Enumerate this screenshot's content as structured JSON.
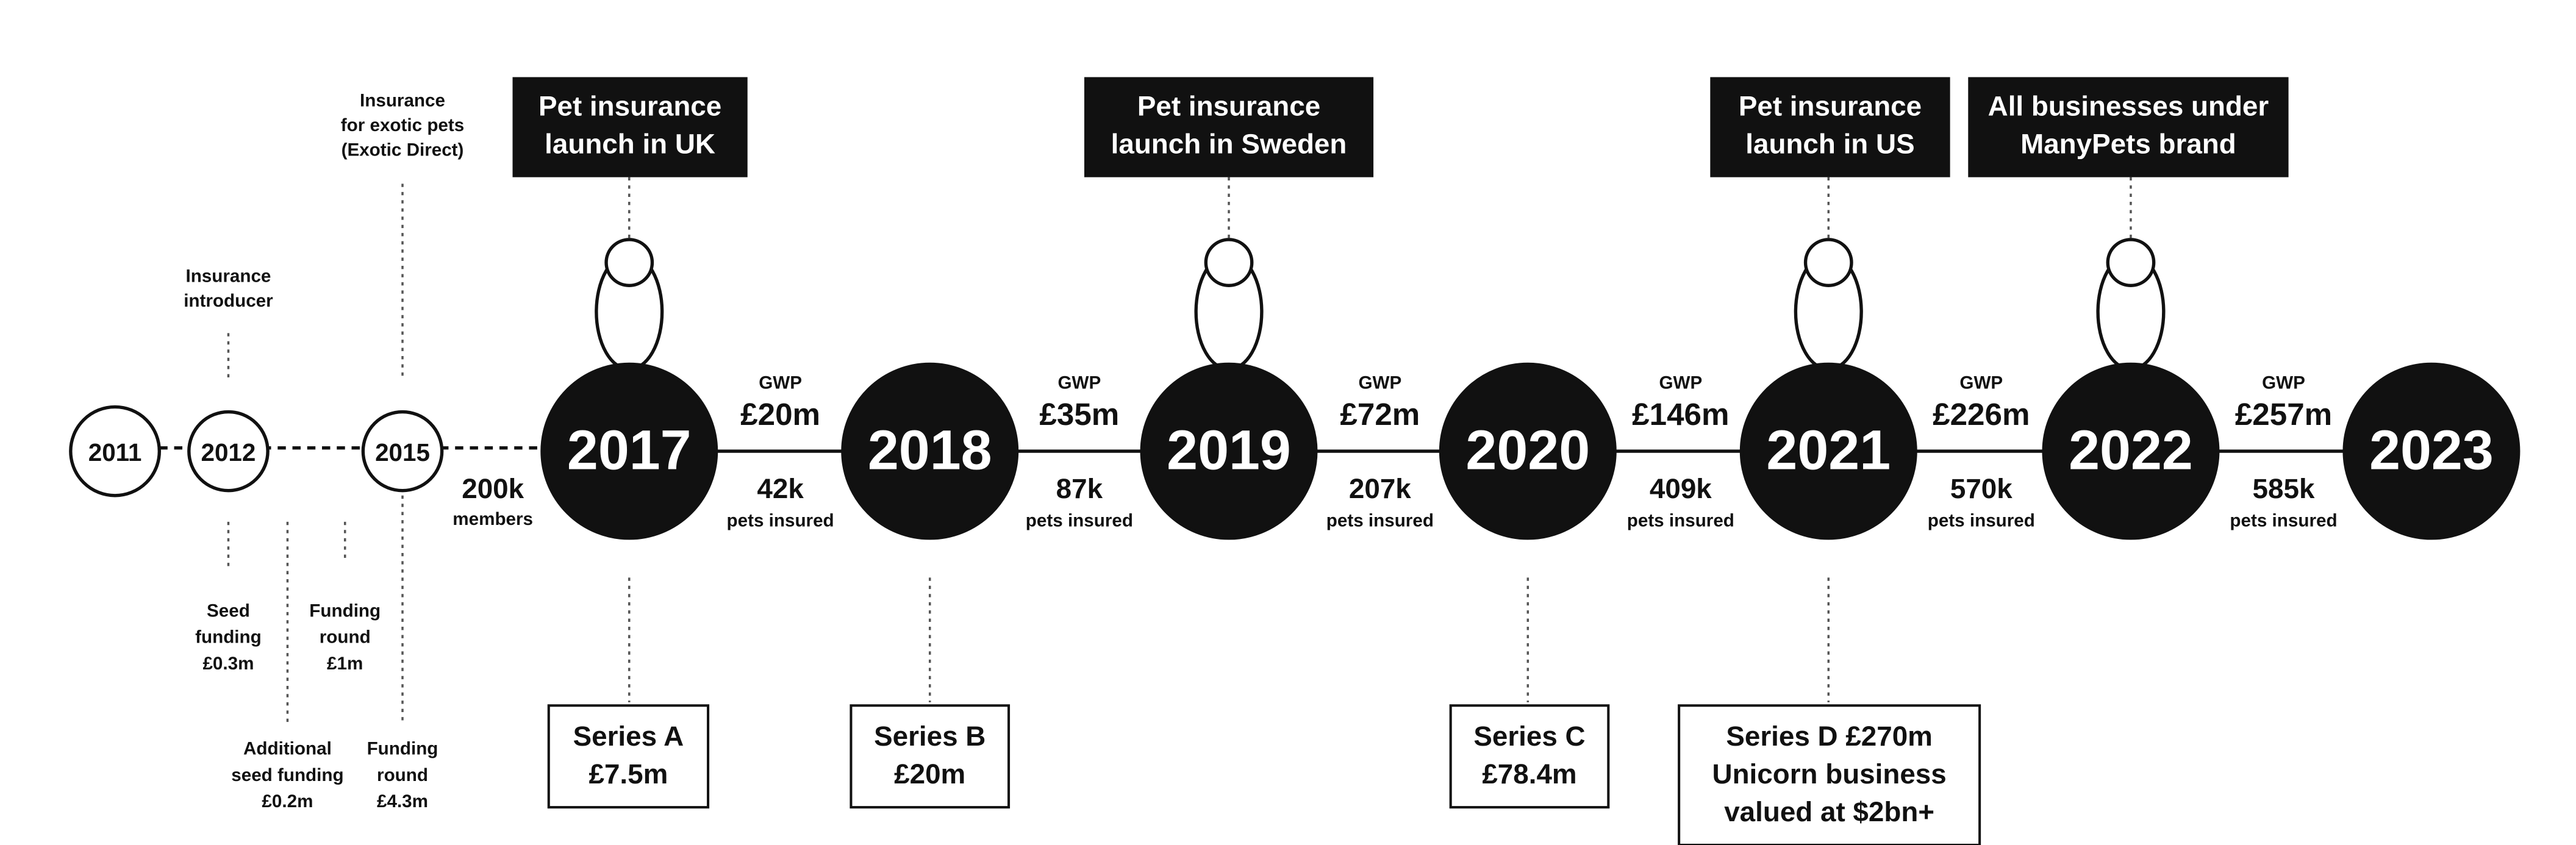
{
  "years": [
    "2011",
    "2012",
    "2015",
    "2017",
    "2018",
    "2019",
    "2020",
    "2021",
    "2022",
    "2023"
  ],
  "top_notes": [
    {
      "lines": [
        "Insurance",
        "introducer"
      ]
    },
    {
      "lines": [
        "Insurance",
        "for exotic pets",
        "(Exotic Direct)"
      ]
    }
  ],
  "launches": [
    {
      "lines": [
        "Pet insurance",
        "launch in UK"
      ]
    },
    {
      "lines": [
        "Pet insurance",
        "launch in Sweden"
      ]
    },
    {
      "lines": [
        "Pet insurance",
        "launch in US"
      ]
    },
    {
      "lines": [
        "All businesses under",
        "ManyPets brand"
      ]
    }
  ],
  "members": {
    "value": "200k",
    "label": "members"
  },
  "segments": [
    {
      "gwp_label": "GWP",
      "gwp": "£20m",
      "pets": "42k",
      "pets_label": "pets insured"
    },
    {
      "gwp_label": "GWP",
      "gwp": "£35m",
      "pets": "87k",
      "pets_label": "pets insured"
    },
    {
      "gwp_label": "GWP",
      "gwp": "£72m",
      "pets": "207k",
      "pets_label": "pets insured"
    },
    {
      "gwp_label": "GWP",
      "gwp": "£146m",
      "pets": "409k",
      "pets_label": "pets insured"
    },
    {
      "gwp_label": "GWP",
      "gwp": "£226m",
      "pets": "570k",
      "pets_label": "pets insured"
    },
    {
      "gwp_label": "GWP",
      "gwp": "£257m",
      "pets": "585k",
      "pets_label": "pets insured"
    }
  ],
  "early_funding": [
    {
      "lines": [
        "Seed",
        "funding",
        "£0.3m"
      ]
    },
    {
      "lines": [
        "Funding",
        "round",
        "£1m"
      ]
    },
    {
      "lines": [
        "Additional",
        "seed funding",
        "£0.2m"
      ]
    },
    {
      "lines": [
        "Funding",
        "round",
        "£4.3m"
      ]
    }
  ],
  "funding_rounds": [
    {
      "lines": [
        "Series A",
        "£7.5m"
      ]
    },
    {
      "lines": [
        "Series B",
        "£20m"
      ]
    },
    {
      "lines": [
        "Series C",
        "£78.4m"
      ]
    },
    {
      "lines": [
        "Series D £270m",
        "Unicorn business",
        "valued at $2bn+"
      ]
    }
  ]
}
